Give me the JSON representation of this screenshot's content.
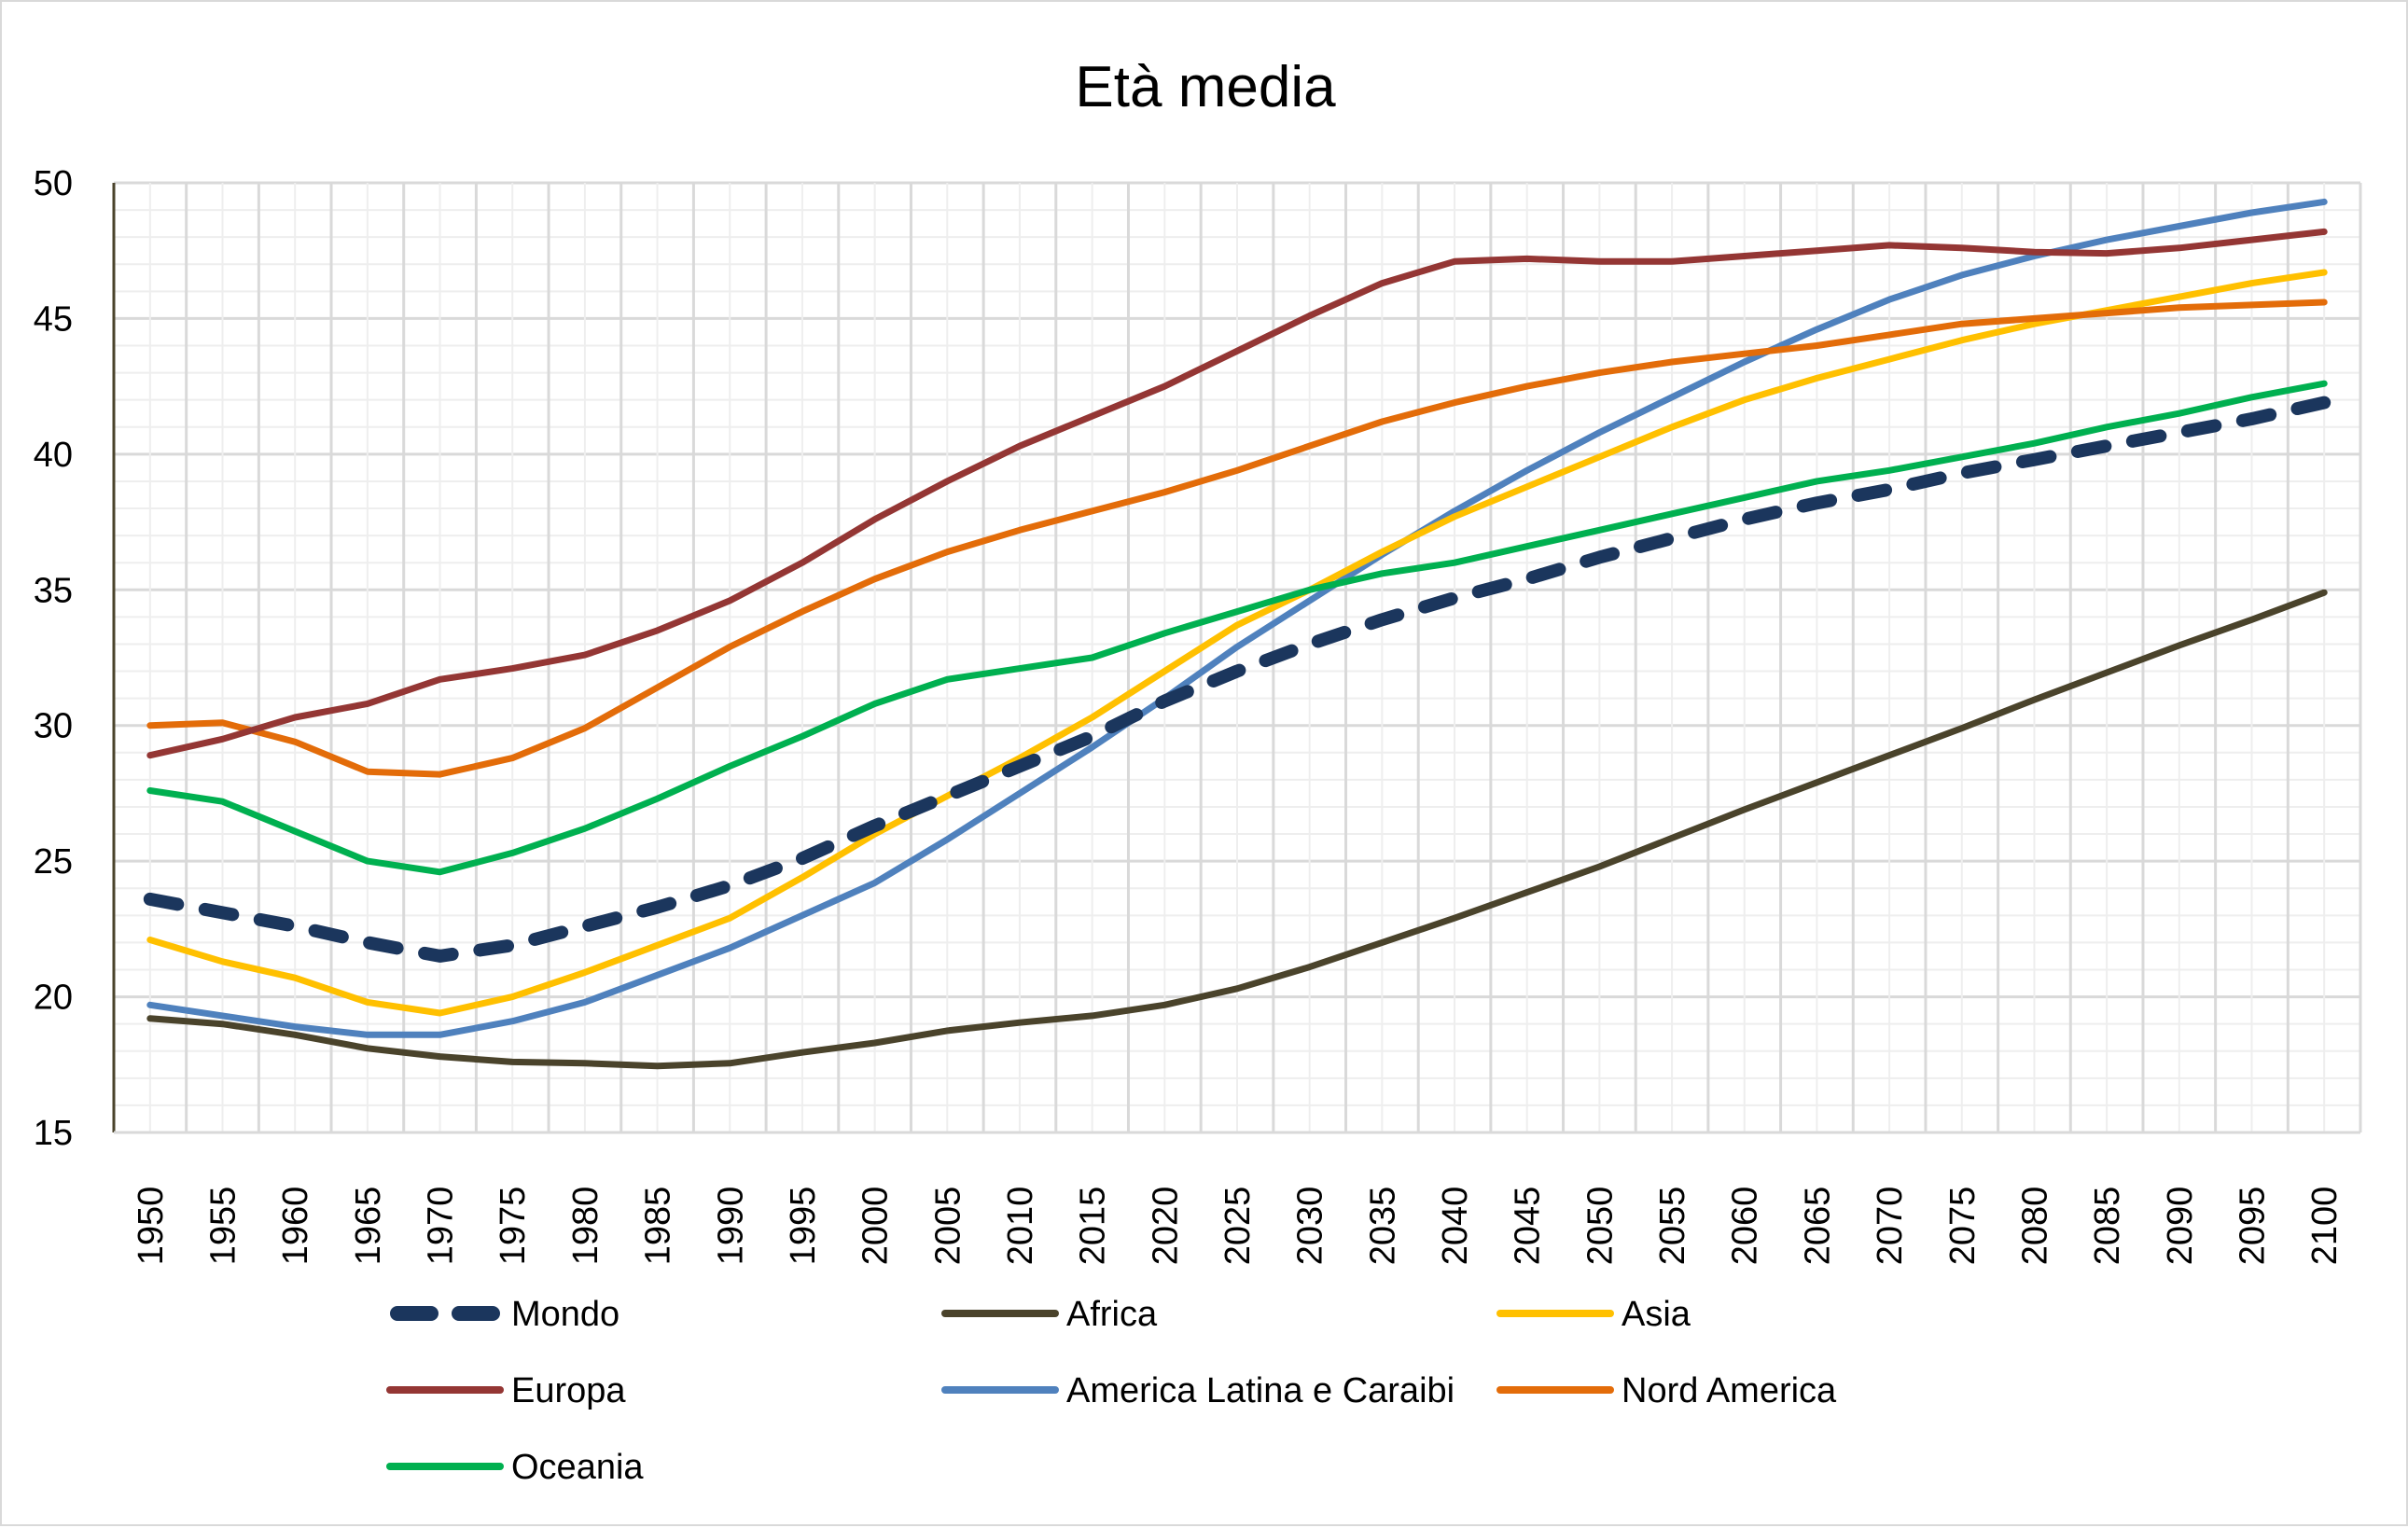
{
  "chart_data": {
    "type": "line",
    "title": "Età media",
    "xlabel": "",
    "ylabel": "",
    "ylim": [
      15,
      50
    ],
    "y_major_step": 5,
    "y_minor_step": 1,
    "grid": true,
    "legend_position": "bottom",
    "x": [
      1950,
      1955,
      1960,
      1965,
      1970,
      1975,
      1980,
      1985,
      1990,
      1995,
      2000,
      2005,
      2010,
      2015,
      2020,
      2025,
      2030,
      2035,
      2040,
      2045,
      2050,
      2055,
      2060,
      2065,
      2070,
      2075,
      2080,
      2085,
      2090,
      2095,
      2100
    ],
    "y_ticks": [
      15,
      20,
      25,
      30,
      35,
      40,
      45,
      50
    ],
    "series": [
      {
        "name": "Mondo",
        "color": "#1b365d",
        "dashed": true,
        "values": [
          23.6,
          23.1,
          22.6,
          22.0,
          21.5,
          21.9,
          22.6,
          23.3,
          24.1,
          25.1,
          26.3,
          27.4,
          28.5,
          29.6,
          30.9,
          32.0,
          33.0,
          33.9,
          34.7,
          35.4,
          36.2,
          36.9,
          37.6,
          38.2,
          38.7,
          39.3,
          39.8,
          40.3,
          40.8,
          41.3,
          41.9
        ]
      },
      {
        "name": "Africa",
        "color": "#4a432b",
        "dashed": false,
        "values": [
          19.2,
          19.0,
          18.6,
          18.1,
          17.8,
          17.6,
          17.55,
          17.45,
          17.55,
          17.95,
          18.3,
          18.75,
          19.05,
          19.3,
          19.7,
          20.3,
          21.1,
          22.0,
          22.9,
          23.85,
          24.8,
          25.85,
          26.9,
          27.9,
          28.9,
          29.9,
          30.95,
          31.95,
          32.95,
          33.9,
          34.9
        ]
      },
      {
        "name": "Asia",
        "color": "#ffc000",
        "dashed": false,
        "values": [
          22.1,
          21.3,
          20.7,
          19.8,
          19.4,
          20.0,
          20.9,
          21.9,
          22.9,
          24.4,
          26.0,
          27.4,
          28.8,
          30.3,
          32.0,
          33.7,
          35.0,
          36.4,
          37.7,
          38.8,
          39.9,
          41.0,
          42.0,
          42.8,
          43.5,
          44.2,
          44.8,
          45.3,
          45.8,
          46.3,
          46.7
        ]
      },
      {
        "name": "Europa",
        "color": "#943634",
        "dashed": false,
        "values": [
          28.9,
          29.5,
          30.3,
          30.8,
          31.7,
          32.1,
          32.6,
          33.5,
          34.6,
          36.0,
          37.6,
          39.0,
          40.3,
          41.4,
          42.5,
          43.8,
          45.1,
          46.3,
          47.1,
          47.2,
          47.1,
          47.1,
          47.3,
          47.5,
          47.7,
          47.6,
          47.45,
          47.4,
          47.6,
          47.9,
          48.2
        ]
      },
      {
        "name": "America Latina e Caraibi",
        "color": "#4f81bd",
        "dashed": false,
        "values": [
          19.7,
          19.3,
          18.9,
          18.6,
          18.6,
          19.1,
          19.8,
          20.8,
          21.8,
          23.0,
          24.2,
          25.8,
          27.5,
          29.2,
          31.0,
          32.9,
          34.6,
          36.3,
          37.9,
          39.4,
          40.8,
          42.1,
          43.4,
          44.6,
          45.7,
          46.6,
          47.3,
          47.9,
          48.4,
          48.9,
          49.3
        ]
      },
      {
        "name": "Nord America",
        "color": "#e36c09",
        "dashed": false,
        "values": [
          30.0,
          30.1,
          29.4,
          28.3,
          28.2,
          28.8,
          29.9,
          31.4,
          32.9,
          34.2,
          35.4,
          36.4,
          37.2,
          37.9,
          38.6,
          39.4,
          40.3,
          41.2,
          41.9,
          42.5,
          43.0,
          43.4,
          43.7,
          44.0,
          44.4,
          44.8,
          45.0,
          45.2,
          45.4,
          45.5,
          45.6
        ]
      },
      {
        "name": "Oceania",
        "color": "#00b050",
        "dashed": false,
        "values": [
          27.6,
          27.2,
          26.1,
          25.0,
          24.6,
          25.3,
          26.2,
          27.3,
          28.5,
          29.6,
          30.8,
          31.7,
          32.1,
          32.5,
          33.4,
          34.2,
          35.0,
          35.6,
          36.0,
          36.6,
          37.2,
          37.8,
          38.4,
          39.0,
          39.4,
          39.9,
          40.4,
          41.0,
          41.5,
          42.1,
          42.6
        ]
      }
    ]
  }
}
